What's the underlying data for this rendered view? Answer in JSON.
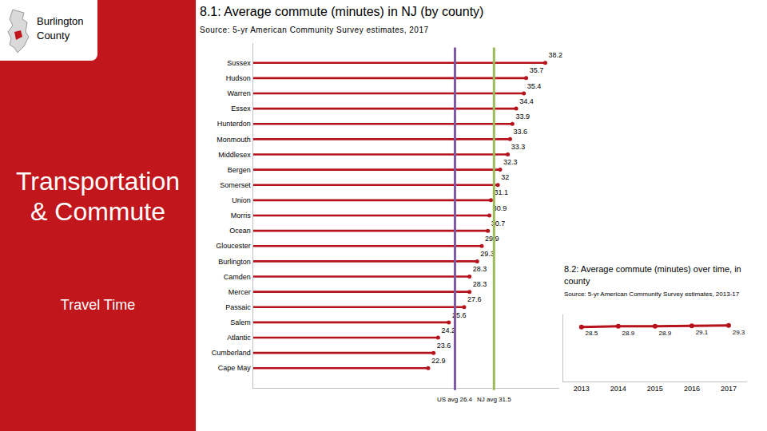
{
  "panel": {
    "county": "Burlington County",
    "title": "Transportation & Commute",
    "subtitle": "Travel Time"
  },
  "chart_data": [
    {
      "type": "bar",
      "orientation": "horizontal",
      "title": "8.1: Average commute (minutes) in NJ (by county)",
      "subtitle": "Source: 5-yr American Community Survey estimates, 2017",
      "categories": [
        "Sussex",
        "Hudson",
        "Warren",
        "Essex",
        "Hunterdon",
        "Monmouth",
        "Middlesex",
        "Bergen",
        "Somerset",
        "Union",
        "Morris",
        "Ocean",
        "Gloucester",
        "Burlington",
        "Camden",
        "Mercer",
        "Passaic",
        "Salem",
        "Atlantic",
        "Cumberland",
        "Cape May"
      ],
      "values": [
        38.2,
        35.7,
        35.4,
        34.4,
        33.9,
        33.6,
        33.3,
        32.3,
        32,
        31.1,
        30.9,
        30.7,
        29.9,
        29.3,
        28.3,
        28.3,
        27.6,
        25.6,
        24.2,
        23.6,
        22.9
      ],
      "color": "#b5121b",
      "marker": "circle",
      "data_labels": true,
      "tick_labels": "y",
      "grid": false,
      "xlim": [
        0,
        40
      ],
      "reference_lines": [
        {
          "value": 26.4,
          "label": "US avg 26.4",
          "color": "#7e57a5"
        },
        {
          "value": 31.5,
          "label": "NJ avg 31.5",
          "color": "#9bbb59"
        }
      ]
    },
    {
      "type": "line",
      "title": "8.2: Average commute (minutes) over time, in county",
      "subtitle": "Source: 5-yr American Community Survey estimates, 2013-17",
      "x": [
        2013,
        2014,
        2015,
        2016,
        2017
      ],
      "values": [
        28.5,
        28.9,
        28.9,
        29.1,
        29.3
      ],
      "color": "#b5121b",
      "marker": "circle",
      "data_labels": true,
      "tick_labels": "x",
      "grid": false,
      "xlim": [
        2012.5,
        2017.5
      ],
      "xticks": [
        2013,
        2014,
        2015,
        2016,
        2017
      ],
      "ylim": [
        0,
        35
      ]
    }
  ]
}
